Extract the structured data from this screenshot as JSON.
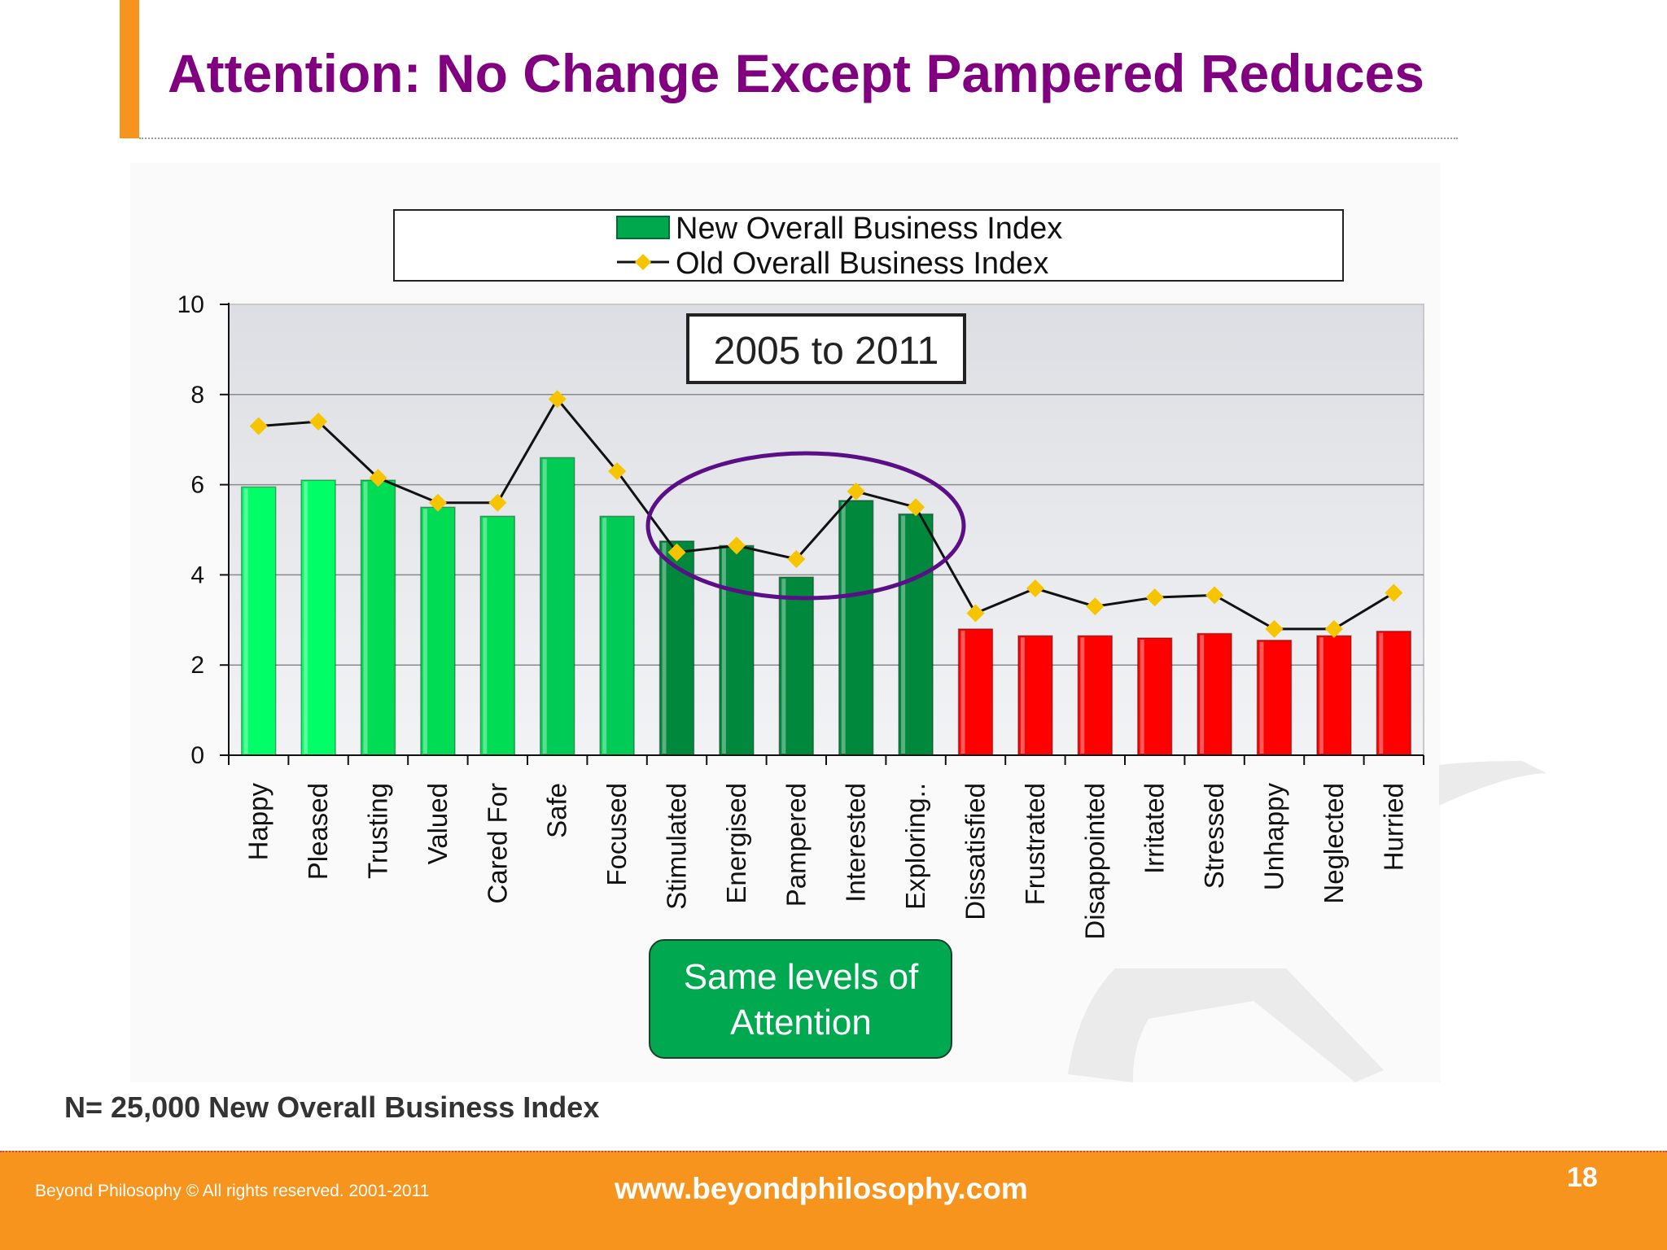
{
  "slide": {
    "title": "Attention: No Change Except Pampered Reduces",
    "note": "N= 25,000 New Overall Business Index",
    "footer": {
      "copyright": "Beyond Philosophy © All rights reserved. 2001-2011",
      "website": "www.beyondphilosophy.com",
      "page_number": "18"
    }
  },
  "colors": {
    "title": "#800080",
    "accent": "#f7941d",
    "plot_background": "#e1e3e7",
    "line": "#111111",
    "marker": "#f7c500",
    "callout_circle": "#5b0f87",
    "callout_box": "#00a94f"
  },
  "chart_data": {
    "type": "bar",
    "categories": [
      "Happy",
      "Pleased",
      "Trusting",
      "Valued",
      "Cared For",
      "Safe",
      "Focused",
      "Stimulated",
      "Energised",
      "Pampered",
      "Interested",
      "Exploring...",
      "Dissatisfied",
      "Frustrated",
      "Disappointed",
      "Irritated",
      "Stressed",
      "Unhappy",
      "Neglected",
      "Hurried"
    ],
    "tick_labels": [
      "Happy",
      "Pleased",
      "Trusting",
      "Valued",
      "Cared For",
      "Safe",
      "Focused",
      "Stimulated",
      "Energised",
      "Pampered",
      "Interested",
      "Exploring..",
      "Dissatisfied",
      "Frustrated",
      "Disappointed",
      "Irritated",
      "Stressed",
      "Unhappy",
      "Neglected",
      "Hurried"
    ],
    "series": [
      {
        "name": "New Overall Business Index",
        "kind": "bar",
        "values": [
          5.95,
          6.1,
          6.1,
          5.5,
          5.3,
          6.6,
          5.3,
          4.75,
          4.65,
          3.95,
          5.65,
          5.35,
          2.8,
          2.65,
          2.65,
          2.6,
          2.7,
          2.55,
          2.65,
          2.75
        ],
        "colors": [
          "#00ff66",
          "#00ff66",
          "#00dd55",
          "#00dd55",
          "#00dd55",
          "#00cc55",
          "#00cc55",
          "#00883d",
          "#00883d",
          "#00883d",
          "#00883d",
          "#00883d",
          "#ff0000",
          "#ff0000",
          "#ff0000",
          "#ff0000",
          "#ff0000",
          "#ff0000",
          "#ff0000",
          "#ff0000"
        ]
      },
      {
        "name": "Old Overall Business Index",
        "kind": "line",
        "values": [
          7.3,
          7.4,
          6.15,
          5.6,
          5.6,
          7.9,
          6.3,
          4.5,
          4.65,
          4.35,
          5.85,
          5.5,
          3.15,
          3.7,
          3.3,
          3.5,
          3.55,
          2.8,
          2.8,
          3.6
        ]
      }
    ],
    "ylim": [
      0,
      10
    ],
    "yticks": [
      "0",
      "2",
      "4",
      "6",
      "8",
      "10"
    ],
    "grid": true,
    "legend_position": "top-center",
    "annotations": {
      "period_label": "2005 to 2011",
      "callout": "Same levels of Attention",
      "callout_lines": [
        "Same levels of",
        "Attention"
      ]
    }
  }
}
